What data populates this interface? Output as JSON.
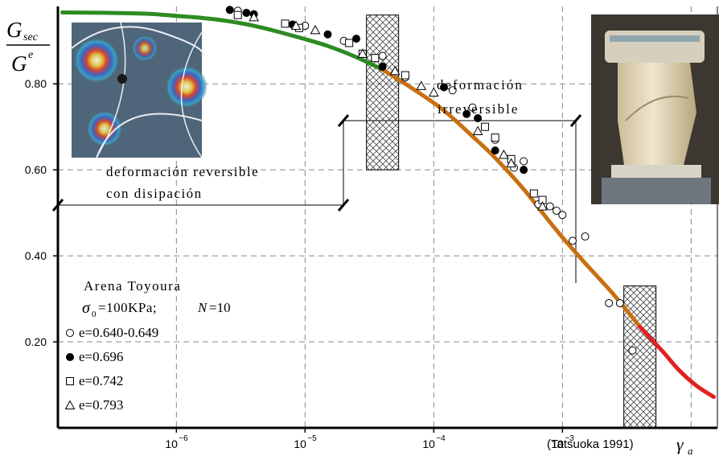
{
  "chart_data": {
    "type": "scatter",
    "title": "",
    "ylabel_num": "G",
    "ylabel_num_sub": "sec",
    "ylabel_den": "G",
    "ylabel_den_sup": "e",
    "xlabel": "γ",
    "xlabel_sub": "a",
    "x_scale": "log",
    "xlim": [
      1.2e-07,
      0.016
    ],
    "ylim": [
      0.0,
      0.98
    ],
    "grid": true,
    "y_ticks": [
      {
        "value": 0.2,
        "label": "0.20"
      },
      {
        "value": 0.4,
        "label": "0.40"
      },
      {
        "value": 0.6,
        "label": "0.60"
      },
      {
        "value": 0.8,
        "label": "0.80"
      }
    ],
    "x_ticks": [
      {
        "value": 1e-06,
        "base": "10",
        "exp": "−6"
      },
      {
        "value": 1e-05,
        "base": "10",
        "exp": "−5"
      },
      {
        "value": 0.0001,
        "base": "10",
        "exp": "−4"
      },
      {
        "value": 0.001,
        "base": "10",
        "exp": "−3"
      }
    ],
    "source": "(Tatsuoka 1991)",
    "curve": [
      {
        "zone": "reversible",
        "color": "#2e8b22",
        "x": [
          1.3e-07,
          3e-07,
          6e-07,
          1e-06,
          2e-06,
          4e-06,
          8e-06,
          1.5e-05,
          2.5e-05,
          4e-05
        ],
        "y": [
          0.966,
          0.965,
          0.963,
          0.958,
          0.95,
          0.935,
          0.912,
          0.888,
          0.862,
          0.833
        ]
      },
      {
        "zone": "reversible-dissipation",
        "color": "#c87010",
        "x": [
          4e-05,
          7e-05,
          0.00012,
          0.0002,
          0.0003,
          0.0005,
          0.0007,
          0.001,
          0.0015,
          0.0025,
          0.004
        ],
        "y": [
          0.833,
          0.787,
          0.738,
          0.678,
          0.628,
          0.555,
          0.5,
          0.443,
          0.383,
          0.31,
          0.235
        ]
      },
      {
        "zone": "irreversible",
        "color": "#e32020",
        "x": [
          0.004,
          0.006,
          0.008,
          0.011,
          0.015
        ],
        "y": [
          0.235,
          0.178,
          0.135,
          0.098,
          0.072
        ]
      }
    ],
    "series": [
      {
        "name": "e=0.640-0.649",
        "marker": "open-circle",
        "x": [
          3e-06,
          1e-05,
          2e-05,
          4e-05,
          6e-05,
          0.00014,
          0.0002,
          0.0003,
          0.00042,
          0.0005,
          0.00065,
          0.0008,
          0.0009,
          0.001,
          0.0012,
          0.0015,
          0.0023,
          0.0028,
          0.0035
        ],
        "y": [
          0.97,
          0.935,
          0.9,
          0.865,
          0.815,
          0.785,
          0.745,
          0.67,
          0.605,
          0.62,
          0.52,
          0.515,
          0.505,
          0.495,
          0.435,
          0.445,
          0.29,
          0.29,
          0.18
        ]
      },
      {
        "name": "e=0.696",
        "marker": "filled-circle",
        "x": [
          2.6e-06,
          3.5e-06,
          4e-06,
          8e-06,
          1.5e-05,
          2.5e-05,
          4e-05,
          0.00012,
          0.00018,
          0.00022,
          0.0003,
          0.0005
        ],
        "y": [
          0.972,
          0.965,
          0.962,
          0.938,
          0.915,
          0.905,
          0.84,
          0.792,
          0.73,
          0.72,
          0.645,
          0.6
        ]
      },
      {
        "name": "e=0.742",
        "marker": "open-square",
        "x": [
          3e-06,
          7e-06,
          9e-06,
          2.2e-05,
          2.8e-05,
          3.5e-05,
          6e-05,
          0.00025,
          0.0003,
          0.0004,
          0.0006,
          0.0007
        ],
        "y": [
          0.96,
          0.94,
          0.93,
          0.895,
          0.87,
          0.86,
          0.82,
          0.7,
          0.675,
          0.625,
          0.545,
          0.53
        ]
      },
      {
        "name": "e=0.793",
        "marker": "open-triangle",
        "x": [
          4e-06,
          8.5e-06,
          1.2e-05,
          2.8e-05,
          5e-05,
          8e-05,
          0.0001,
          0.00022,
          0.00035,
          0.0004,
          0.0007
        ],
        "y": [
          0.955,
          0.935,
          0.925,
          0.87,
          0.83,
          0.795,
          0.78,
          0.69,
          0.635,
          0.615,
          0.515
        ]
      }
    ],
    "legend_title": "Arena Toyoura",
    "legend_subtitle": {
      "sigma": "σ",
      "sigma_sub": "0",
      "stress": "=100KPa;",
      "n_label": "N",
      "n_value": "=10"
    },
    "annotations": {
      "irreversible_line1": "deformación",
      "irreversible_line2": "irreversible",
      "reversible_line1": "deformación reversible",
      "reversible_line2": "con disipación"
    },
    "hatched_boxes": [
      {
        "x": 4e-05,
        "ylim": [
          0.6,
          0.96
        ]
      },
      {
        "x": 0.004,
        "ylim": [
          0.0,
          0.33
        ]
      }
    ]
  },
  "photos": {
    "left": {
      "icon": "photoelastic-disc-photo"
    },
    "right": {
      "icon": "triaxial-soil-sample-photo"
    }
  }
}
